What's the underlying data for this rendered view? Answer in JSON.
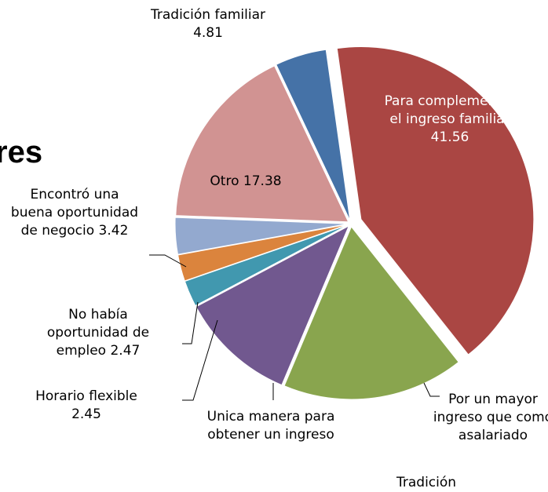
{
  "chart_data": {
    "type": "pie",
    "title": "res",
    "categories": [
      "Para complementar el ingreso familiar",
      "Por un mayor ingreso que como asalariado",
      "Unica manera para obtener un ingreso",
      "Horario flexible",
      "No había oportunidad de empleo",
      "Encontró una buena oportunidad de negocio",
      "Otro",
      "Tradición familiar"
    ],
    "values": [
      41.56,
      17.01,
      10.9,
      2.45,
      2.47,
      3.42,
      17.38,
      4.81
    ],
    "colors": [
      "#aa4643",
      "#89a54e",
      "#71588f",
      "#4198af",
      "#db843d",
      "#93a9cf",
      "#d19392",
      "#4572a7"
    ],
    "annotation": "Tradición"
  }
}
